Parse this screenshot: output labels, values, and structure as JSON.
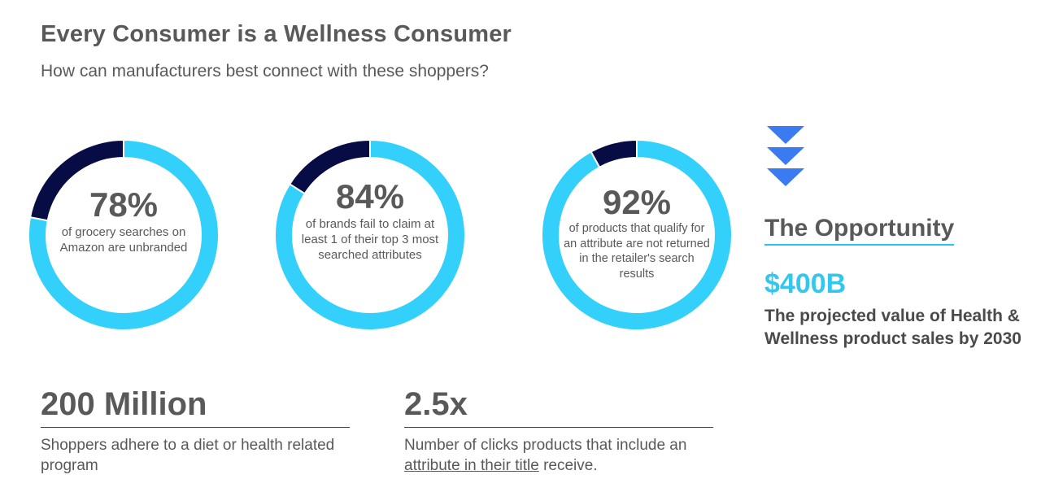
{
  "header": {
    "title": "Every Consumer is a Wellness Consumer",
    "subtitle": "How can manufacturers best connect with these shoppers?"
  },
  "colors": {
    "ring_primary": "#33d0fb",
    "ring_secondary": "#080c45",
    "arrow": "#3b7bf2",
    "accent": "#33c7ef",
    "text": "#595959"
  },
  "chart_data": [
    {
      "type": "pie",
      "variant": "donut",
      "value_label": "78%",
      "caption": "of grocery searches on Amazon are unbranded",
      "slices": [
        {
          "value": 78,
          "color": "#33d0fb"
        },
        {
          "value": 22,
          "color": "#080c45"
        }
      ]
    },
    {
      "type": "pie",
      "variant": "donut",
      "value_label": "84%",
      "caption": "of brands fail to claim at least 1 of their top 3 most searched attributes",
      "slices": [
        {
          "value": 84,
          "color": "#33d0fb"
        },
        {
          "value": 16,
          "color": "#080c45"
        }
      ]
    },
    {
      "type": "pie",
      "variant": "donut",
      "value_label": "92%",
      "caption": "of products that qualify for an attribute are not returned in the retailer's search results",
      "slices": [
        {
          "value": 92,
          "color": "#33d0fb"
        },
        {
          "value": 8,
          "color": "#080c45"
        }
      ]
    }
  ],
  "opportunity": {
    "title": "The Opportunity",
    "value": "$400B",
    "description": "The projected value of Health & Wellness product sales by 2030"
  },
  "stats": {
    "millions": {
      "value": "200 Million",
      "description": "Shoppers adhere to a diet or health related program"
    },
    "clicks": {
      "value": "2.5x",
      "description_pre": "Number  of clicks products that include an ",
      "description_link": "attribute in their title",
      "description_post": " receive."
    }
  }
}
